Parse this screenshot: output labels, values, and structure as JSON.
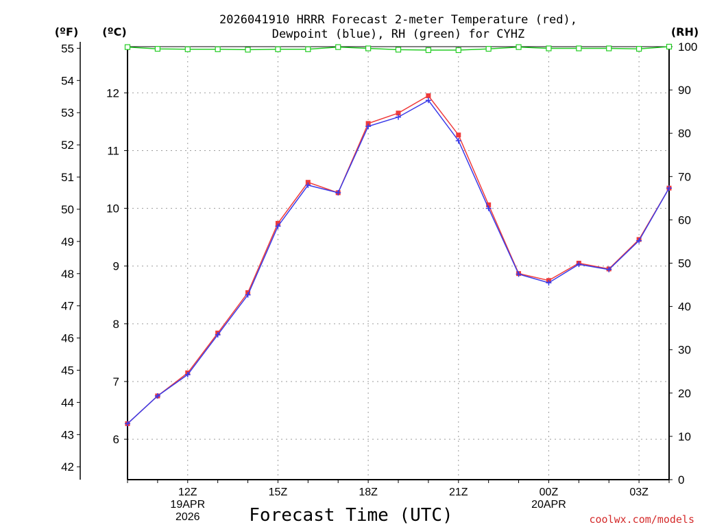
{
  "title": {
    "line1": "2026041910 HRRR Forecast 2-meter Temperature (red),",
    "line2": "Dewpoint (blue), RH (green) for CYHZ"
  },
  "units": {
    "fahrenheit": "(ºF)",
    "celsius": "(ºC)",
    "rh": "(RH)"
  },
  "credit": "coolwx.com/models",
  "chart_data": {
    "type": "line",
    "title": "2026041910 HRRR Forecast 2-meter Temperature (red), Dewpoint (blue), RH (green) for CYHZ",
    "xlabel": "Forecast Time (UTC)",
    "x_hours": [
      10,
      11,
      12,
      13,
      14,
      15,
      16,
      17,
      18,
      19,
      20,
      21,
      22,
      23,
      24,
      25,
      26,
      27,
      28
    ],
    "xlim": [
      10,
      28
    ],
    "xticks": [
      {
        "hour": 12,
        "label": "12Z",
        "date": "19APR",
        "year": "2026"
      },
      {
        "hour": 15,
        "label": "15Z"
      },
      {
        "hour": 18,
        "label": "18Z"
      },
      {
        "hour": 21,
        "label": "21Z"
      },
      {
        "hour": 24,
        "label": "00Z",
        "date": "20APR"
      },
      {
        "hour": 27,
        "label": "03Z"
      }
    ],
    "celsius_axis": {
      "ylim": [
        5.3,
        12.8
      ],
      "ticks": [
        6,
        7,
        8,
        9,
        10,
        11,
        12
      ]
    },
    "fahrenheit_axis": {
      "ylim": [
        41.6,
        55.2
      ],
      "ticks": [
        42,
        43,
        44,
        45,
        46,
        47,
        48,
        49,
        50,
        51,
        52,
        53,
        54,
        55
      ]
    },
    "rh_axis": {
      "ylim": [
        0,
        100
      ],
      "ticks": [
        0,
        10,
        20,
        30,
        40,
        50,
        60,
        70,
        80,
        90,
        100
      ]
    },
    "series": [
      {
        "name": "Temperature",
        "axis": "celsius",
        "color": "#ef3b3b",
        "marker": "square",
        "values": [
          6.27,
          6.75,
          7.15,
          7.84,
          8.54,
          9.74,
          10.45,
          10.27,
          11.47,
          11.65,
          11.95,
          11.27,
          10.06,
          8.87,
          8.75,
          9.05,
          8.95,
          9.46,
          10.35
        ]
      },
      {
        "name": "Dewpoint",
        "axis": "celsius",
        "color": "#3a3ae8",
        "marker": "plus",
        "values": [
          6.27,
          6.75,
          7.12,
          7.81,
          8.5,
          9.69,
          10.4,
          10.27,
          11.42,
          11.58,
          11.87,
          11.17,
          10.0,
          8.86,
          8.71,
          9.03,
          8.94,
          9.44,
          10.35
        ]
      },
      {
        "name": "RH",
        "axis": "rh",
        "color": "#22cc22",
        "marker": "open-square",
        "values": [
          99.9,
          99.5,
          99.4,
          99.4,
          99.3,
          99.4,
          99.4,
          99.9,
          99.6,
          99.3,
          99.2,
          99.2,
          99.5,
          99.9,
          99.6,
          99.6,
          99.6,
          99.5,
          100
        ]
      }
    ]
  }
}
